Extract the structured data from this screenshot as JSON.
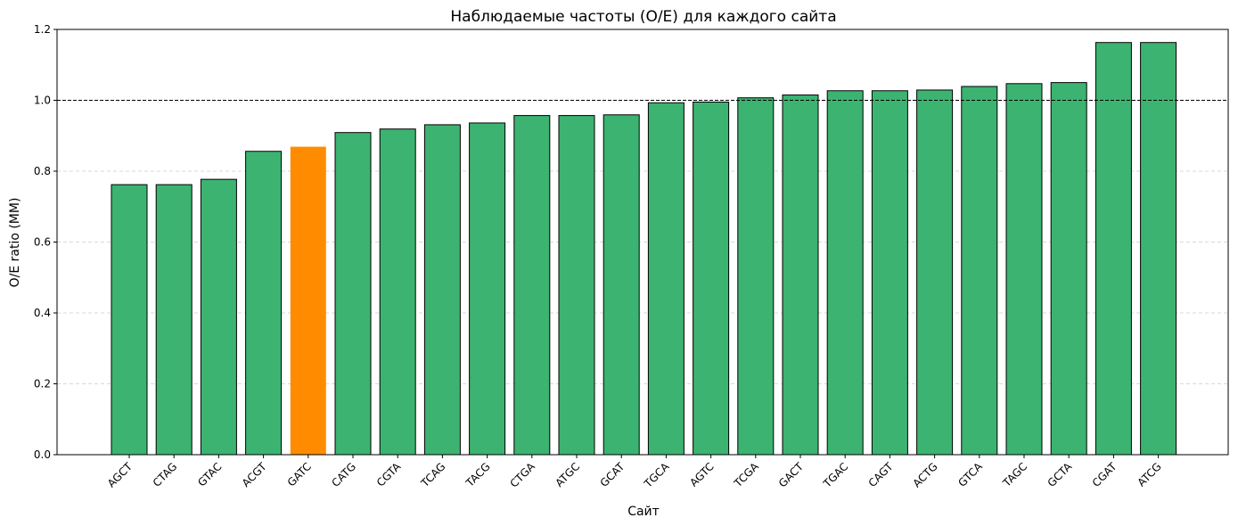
{
  "chart_data": {
    "type": "bar",
    "title": "Наблюдаемые частоты (O/E) для каждого сайта",
    "xlabel": "Сайт",
    "ylabel": "O/E ratio (MM)",
    "ylim": [
      0,
      1.2
    ],
    "yticks": [
      "0.0",
      "0.2",
      "0.4",
      "0.6",
      "0.8",
      "1.0",
      "1.2"
    ],
    "grid": "horizontal dashed",
    "reference_line": 1.0,
    "categories": [
      "AGCT",
      "CTAG",
      "GTAC",
      "ACGT",
      "GATC",
      "CATG",
      "CGTA",
      "TCAG",
      "TACG",
      "CTGA",
      "ATGC",
      "GCAT",
      "TGCA",
      "AGTC",
      "TCGA",
      "GACT",
      "TGAC",
      "CAGT",
      "ACTG",
      "GTCA",
      "TAGC",
      "GCTA",
      "CGAT",
      "ATCG"
    ],
    "values": [
      0.762,
      0.762,
      0.777,
      0.856,
      0.869,
      0.909,
      0.919,
      0.931,
      0.936,
      0.957,
      0.957,
      0.959,
      0.993,
      0.995,
      1.007,
      1.015,
      1.027,
      1.027,
      1.029,
      1.039,
      1.047,
      1.05,
      1.163,
      1.163
    ],
    "highlight_category": "GATC",
    "colors": {
      "bar": "#3cb371",
      "highlight": "#ff8c00",
      "edge": "#000000",
      "grid": "#cccccc"
    }
  }
}
